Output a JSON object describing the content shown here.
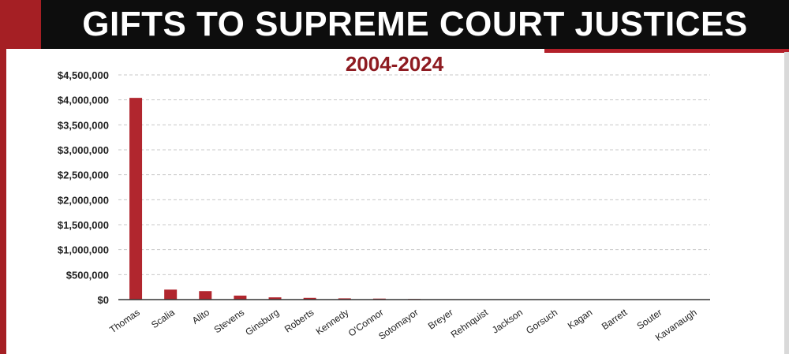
{
  "header": {
    "title": "GIFTS TO SUPREME COURT JUSTICES"
  },
  "colors": {
    "bar": "#b1262e",
    "banner": "#0d0d0d",
    "accent": "#a51f24",
    "subtitle": "#8e1b21",
    "grid": "#c8c8c8"
  },
  "chart_data": {
    "type": "bar",
    "title": "GIFTS TO SUPREME COURT JUSTICES",
    "subtitle": "2004-2024",
    "xlabel": "",
    "ylabel": "",
    "ylim": [
      0,
      4500000
    ],
    "grid": true,
    "y_ticks": [
      {
        "value": 0,
        "label": "$0"
      },
      {
        "value": 500000,
        "label": "$500,000"
      },
      {
        "value": 1000000,
        "label": "$1,000,000"
      },
      {
        "value": 1500000,
        "label": "$1,500,000"
      },
      {
        "value": 2000000,
        "label": "$2,000,000"
      },
      {
        "value": 2500000,
        "label": "$2,500,000"
      },
      {
        "value": 3000000,
        "label": "$3,000,000"
      },
      {
        "value": 3500000,
        "label": "$3,500,000"
      },
      {
        "value": 4000000,
        "label": "$4,000,000"
      },
      {
        "value": 4500000,
        "label": "$4,500,000"
      }
    ],
    "categories": [
      "Thomas",
      "Scalia",
      "Alito",
      "Stevens",
      "Ginsburg",
      "Roberts",
      "Kennedy",
      "O'Connor",
      "Sotomayor",
      "Breyer",
      "Rehnquist",
      "Jackson",
      "Gorsuch",
      "Kagan",
      "Barrett",
      "Souter",
      "Kavanaugh"
    ],
    "values": [
      4040000,
      200000,
      170000,
      80000,
      45000,
      35000,
      25000,
      20000,
      12000,
      8000,
      0,
      0,
      0,
      0,
      0,
      0,
      0
    ]
  }
}
